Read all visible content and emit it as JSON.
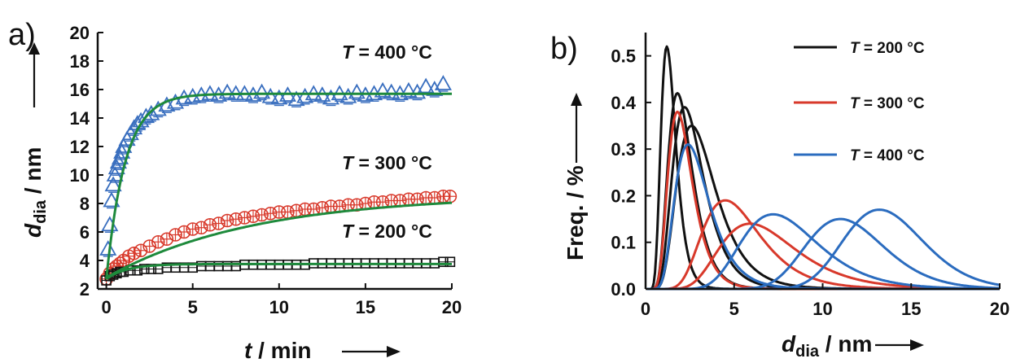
{
  "chart_data": [
    {
      "panel": "a)",
      "type": "scatter",
      "ylabel_main": "d",
      "ylabel_sub": "dia",
      "ylabel_unit": " / nm",
      "xlabel_main": "t",
      "xlabel_unit": " / min",
      "xlim": [
        -0.5,
        20
      ],
      "ylim": [
        2,
        20
      ],
      "xticks": [
        0,
        5,
        10,
        15,
        20
      ],
      "yticks": [
        2,
        4,
        6,
        8,
        10,
        12,
        14,
        16,
        18,
        20
      ],
      "grid": false,
      "fit_color": "#1e8a3c",
      "series": [
        {
          "name": "T = 400 °C",
          "label_T": "T",
          "label_rest": " = 400 °C",
          "color": "#3a6fbf",
          "marker": "triangle",
          "x": [
            0.1,
            0.2,
            0.3,
            0.4,
            0.5,
            0.6,
            0.7,
            0.8,
            0.9,
            1.0,
            1.2,
            1.4,
            1.6,
            1.8,
            2.0,
            2.3,
            2.6,
            3.0,
            3.5,
            4.0,
            4.5,
            5,
            5.5,
            6,
            6.5,
            7,
            7.5,
            8,
            8.5,
            9,
            9.5,
            10,
            10.5,
            11,
            11.5,
            12,
            12.5,
            13,
            13.5,
            14,
            14.5,
            15,
            15.5,
            16,
            16.5,
            17,
            17.5,
            18,
            18.5,
            19,
            19.5
          ],
          "y": [
            4.8,
            6.5,
            8.2,
            9.3,
            10.0,
            10.5,
            10.9,
            11.2,
            11.6,
            12.0,
            12.5,
            12.9,
            13.3,
            13.6,
            13.8,
            14.1,
            14.3,
            14.6,
            14.9,
            15.1,
            15.4,
            15.5,
            15.6,
            15.7,
            15.6,
            15.8,
            15.7,
            15.7,
            15.6,
            15.8,
            15.5,
            15.4,
            15.6,
            15.3,
            15.5,
            15.7,
            15.6,
            15.4,
            15.7,
            15.5,
            15.8,
            15.6,
            15.7,
            15.9,
            15.8,
            15.7,
            15.9,
            15.8,
            16.2,
            16.0,
            16.4
          ]
        },
        {
          "name": "T = 300 °C",
          "label_T": "T",
          "label_rest": " = 300 °C",
          "color": "#d8392b",
          "marker": "circle",
          "x": [
            0,
            0.2,
            0.4,
            0.6,
            0.8,
            1.0,
            1.3,
            1.6,
            2.0,
            2.5,
            3.0,
            3.5,
            4.0,
            4.5,
            5,
            5.5,
            6,
            6.5,
            7,
            7.5,
            8,
            8.5,
            9,
            9.5,
            10,
            10.5,
            11,
            11.5,
            12,
            12.5,
            13,
            13.5,
            14,
            14.5,
            15,
            15.5,
            16,
            16.5,
            17,
            17.5,
            18,
            18.5,
            19,
            19.5,
            19.9
          ],
          "y": [
            2.7,
            3.1,
            3.4,
            3.6,
            3.8,
            4.0,
            4.3,
            4.5,
            4.7,
            5.0,
            5.3,
            5.5,
            5.8,
            6.0,
            6.2,
            6.3,
            6.5,
            6.6,
            6.8,
            6.9,
            7.0,
            7.1,
            7.2,
            7.3,
            7.4,
            7.4,
            7.5,
            7.6,
            7.6,
            7.7,
            7.8,
            7.8,
            7.9,
            7.9,
            8.0,
            8.1,
            8.1,
            8.2,
            8.2,
            8.3,
            8.3,
            8.4,
            8.4,
            8.5,
            8.5
          ]
        },
        {
          "name": "T = 200 °C",
          "label_T": "T",
          "label_rest": " = 200 °C",
          "color": "#111111",
          "marker": "square",
          "x": [
            0,
            0.2,
            0.4,
            0.6,
            0.8,
            1.0,
            1.4,
            1.8,
            2.2,
            2.6,
            3.0,
            3.5,
            4.0,
            4.5,
            5,
            5.5,
            6,
            6.5,
            7,
            7.5,
            8,
            8.5,
            9,
            9.5,
            10,
            10.5,
            11,
            11.5,
            12,
            12.5,
            13,
            13.5,
            14,
            14.5,
            15,
            15.5,
            16,
            16.5,
            17,
            17.5,
            18,
            18.5,
            19,
            19.5,
            19.9
          ],
          "y": [
            2.6,
            2.9,
            3.0,
            3.1,
            3.2,
            3.2,
            3.3,
            3.3,
            3.4,
            3.4,
            3.4,
            3.5,
            3.5,
            3.5,
            3.5,
            3.6,
            3.6,
            3.6,
            3.6,
            3.6,
            3.7,
            3.7,
            3.7,
            3.7,
            3.7,
            3.7,
            3.7,
            3.7,
            3.8,
            3.8,
            3.8,
            3.8,
            3.8,
            3.8,
            3.8,
            3.8,
            3.8,
            3.8,
            3.8,
            3.8,
            3.8,
            3.8,
            3.8,
            3.9,
            3.9
          ]
        }
      ],
      "fits": [
        {
          "series": "T = 400 °C",
          "A": 15.7,
          "y0": 2.7,
          "tau": 1.1
        },
        {
          "series": "T = 300 °C",
          "A": 8.6,
          "y0": 2.8,
          "tau": 8.5
        },
        {
          "series": "T = 200 °C",
          "A": 3.75,
          "y0": 2.7,
          "tau": 1.2
        }
      ]
    },
    {
      "panel": "b)",
      "type": "line",
      "ylabel": "Freq. / %",
      "xlabel_main": "d",
      "xlabel_sub": "dia",
      "xlabel_unit": " / nm",
      "xlim": [
        0,
        20
      ],
      "ylim": [
        0,
        0.55
      ],
      "xticks": [
        0,
        5,
        10,
        15,
        20
      ],
      "yticks": [
        "0.0",
        "0.1",
        "0.2",
        "0.3",
        "0.4",
        "0.5"
      ],
      "legend_position": "top-right",
      "grid": false,
      "series": [
        {
          "name": "T = 200 °C",
          "label_T": "T",
          "label_rest": " = 200 °C",
          "color": "#111111",
          "curves": [
            {
              "peak_x": 1.2,
              "peak_y": 0.52,
              "s": 0.35
            },
            {
              "peak_x": 1.8,
              "peak_y": 0.42,
              "s": 0.38
            },
            {
              "peak_x": 2.2,
              "peak_y": 0.39,
              "s": 0.4
            },
            {
              "peak_x": 2.6,
              "peak_y": 0.35,
              "s": 0.42
            }
          ]
        },
        {
          "name": "T = 300 °C",
          "label_T": "T",
          "label_rest": " = 300 °C",
          "color": "#d8392b",
          "curves": [
            {
              "peak_x": 1.8,
              "peak_y": 0.38,
              "s": 0.38
            },
            {
              "peak_x": 4.5,
              "peak_y": 0.19,
              "s": 0.36
            },
            {
              "peak_x": 5.9,
              "peak_y": 0.14,
              "s": 0.36
            }
          ]
        },
        {
          "name": "T = 400 °C",
          "label_T": "T",
          "label_rest": " = 400 °C",
          "color": "#2b6cbf",
          "curves": [
            {
              "peak_x": 2.4,
              "peak_y": 0.31,
              "s": 0.4
            },
            {
              "peak_x": 7.2,
              "peak_y": 0.16,
              "s": 0.3
            },
            {
              "peak_x": 11.0,
              "peak_y": 0.15,
              "s": 0.2
            },
            {
              "peak_x": 13.2,
              "peak_y": 0.17,
              "s": 0.17
            }
          ]
        }
      ]
    }
  ]
}
